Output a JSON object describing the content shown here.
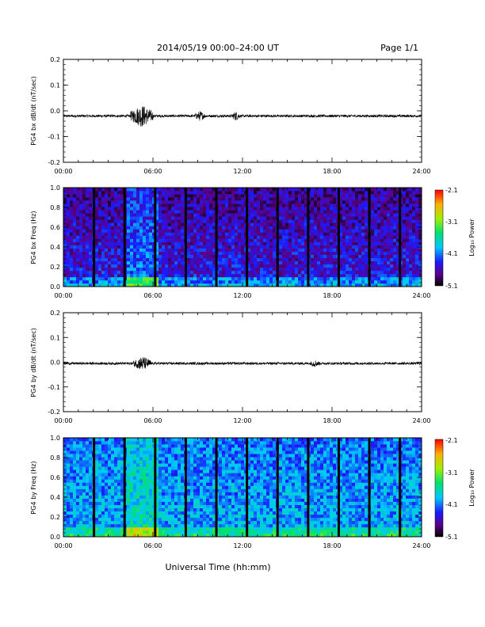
{
  "header": {
    "title": "2014/05/19  00:00–24:00 UT",
    "page": "Page 1/1"
  },
  "xaxis_label": "Universal Time (hh:mm)",
  "colorbar": {
    "label": "Log₁₀ Power",
    "ticks": [
      "-2.1",
      "-3.1",
      "-4.1",
      "-5.1"
    ],
    "range": [
      -5.1,
      -2.1
    ]
  },
  "chart_data": [
    {
      "type": "line",
      "ylabel": "PG4 bx dB/dt (nT/sec)",
      "xlim": [
        0,
        24
      ],
      "ylim": [
        -0.2,
        0.2
      ],
      "x_ticks": [
        "00:00",
        "06:00",
        "12:00",
        "18:00",
        "24:00"
      ],
      "y_ticks": [
        "0.2",
        "0.1",
        "0.0",
        "-0.1",
        "-0.2"
      ],
      "baseline": -0.02,
      "bursts": [
        {
          "x": [
            4.5,
            6.0
          ],
          "amplitude": 0.045
        },
        {
          "x": [
            8.8,
            9.5
          ],
          "amplitude": 0.02
        },
        {
          "x": [
            11.3,
            11.8
          ],
          "amplitude": 0.02
        }
      ]
    },
    {
      "type": "heatmap",
      "ylabel": "PG4 bx Freq (Hz)",
      "xlim": [
        0,
        24
      ],
      "ylim": [
        0,
        1.0
      ],
      "x_ticks": [
        "00:00",
        "06:00",
        "12:00",
        "18:00",
        "24:00"
      ],
      "y_ticks": [
        "1.0",
        "0.8",
        "0.6",
        "0.4",
        "0.2",
        "0.0"
      ],
      "zlim": [
        -5.1,
        -2.1
      ],
      "data_gaps_hours": [
        2.05,
        4.1,
        6.15,
        8.2,
        10.25,
        12.3,
        14.35,
        16.4,
        18.45,
        20.5,
        22.55
      ]
    },
    {
      "type": "line",
      "ylabel": "PG4 by dB/dt (nT/sec)",
      "xlim": [
        0,
        24
      ],
      "ylim": [
        -0.2,
        0.2
      ],
      "x_ticks": [
        "00:00",
        "06:00",
        "12:00",
        "18:00",
        "24:00"
      ],
      "y_ticks": [
        "0.2",
        "0.1",
        "0.0",
        "-0.1",
        "-0.2"
      ],
      "baseline": -0.005,
      "bursts": [
        {
          "x": [
            4.7,
            5.9
          ],
          "amplitude": 0.03
        },
        {
          "x": [
            16.5,
            17.2
          ],
          "amplitude": 0.015
        }
      ]
    },
    {
      "type": "heatmap",
      "ylabel": "PG4 by Freq (Hz)",
      "xlim": [
        0,
        24
      ],
      "ylim": [
        0,
        1.0
      ],
      "x_ticks": [
        "00:00",
        "06:00",
        "12:00",
        "18:00",
        "24:00"
      ],
      "y_ticks": [
        "1.0",
        "0.8",
        "0.6",
        "0.4",
        "0.2",
        "0.0"
      ],
      "zlim": [
        -5.1,
        -2.1
      ],
      "data_gaps_hours": [
        2.05,
        4.1,
        6.15,
        8.2,
        10.25,
        12.3,
        14.35,
        16.4,
        18.45,
        20.5,
        22.55
      ]
    }
  ]
}
